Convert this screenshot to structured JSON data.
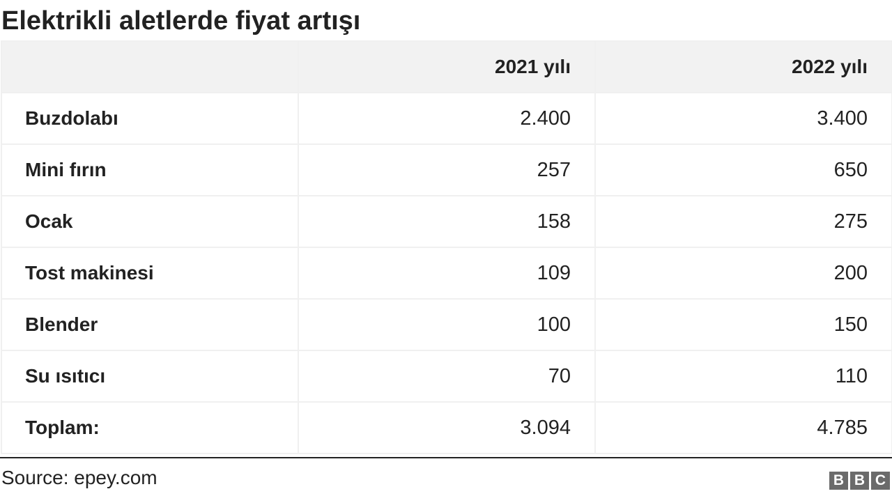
{
  "title": "Elektrikli aletlerde fiyat artışı",
  "source": "Source: epey.com",
  "logo": [
    "B",
    "B",
    "C"
  ],
  "chart_data": {
    "type": "table",
    "title": "Elektrikli aletlerde fiyat artışı",
    "columns": [
      "",
      "2021 yılı",
      "2022 yılı"
    ],
    "rows": [
      {
        "label": "Buzdolabı",
        "values": [
          "2.400",
          "3.400"
        ]
      },
      {
        "label": "Mini fırın",
        "values": [
          "257",
          "650"
        ]
      },
      {
        "label": "Ocak",
        "values": [
          "158",
          "275"
        ]
      },
      {
        "label": "Tost makinesi",
        "values": [
          "109",
          "200"
        ]
      },
      {
        "label": "Blender",
        "values": [
          "100",
          "150"
        ]
      },
      {
        "label": "Su ısıtıcı",
        "values": [
          "70",
          "110"
        ]
      },
      {
        "label": "Toplam:",
        "values": [
          "3.094",
          "4.785"
        ]
      }
    ]
  }
}
